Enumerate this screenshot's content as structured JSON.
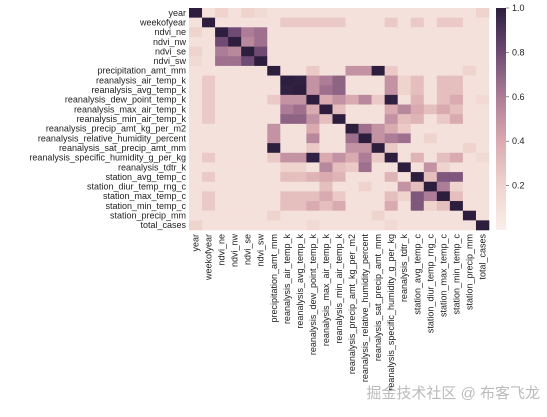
{
  "chart_data": {
    "type": "heatmap",
    "categories": [
      "year",
      "weekofyear",
      "ndvi_ne",
      "ndvi_nw",
      "ndvi_se",
      "ndvi_sw",
      "precipitation_amt_mm",
      "reanalysis_air_temp_k",
      "reanalysis_avg_temp_k",
      "reanalysis_dew_point_temp_k",
      "reanalysis_max_air_temp_k",
      "reanalysis_min_air_temp_k",
      "reanalysis_precip_amt_kg_per_m2",
      "reanalysis_relative_humidity_percent",
      "reanalysis_sat_precip_amt_mm",
      "reanalysis_specific_humidity_g_per_kg",
      "reanalysis_tdtr_k",
      "station_avg_temp_c",
      "station_diur_temp_rng_c",
      "station_max_temp_c",
      "station_min_temp_c",
      "station_precip_mm",
      "total_cases"
    ],
    "values": [
      [
        1,
        0.1,
        0.2,
        0.1,
        0.2,
        0.15,
        0.1,
        0.1,
        0.1,
        0.1,
        0.1,
        0.1,
        0.1,
        0.1,
        0.1,
        0.1,
        0.1,
        0.1,
        0.1,
        0.1,
        0.1,
        0.1,
        0.2
      ],
      [
        0.1,
        1,
        0.1,
        0.1,
        0.1,
        0.1,
        0.1,
        0.25,
        0.25,
        0.25,
        0.25,
        0.25,
        0.1,
        0.1,
        0.1,
        0.25,
        0.1,
        0.25,
        0.1,
        0.25,
        0.25,
        0.1,
        0.1
      ],
      [
        0.2,
        0.1,
        1,
        0.8,
        0.6,
        0.65,
        0.1,
        0.1,
        0.1,
        0.1,
        0.1,
        0.1,
        0.1,
        0.1,
        0.1,
        0.1,
        0.1,
        0.1,
        0.1,
        0.1,
        0.1,
        0.1,
        0.1
      ],
      [
        0.1,
        0.1,
        0.8,
        1,
        0.55,
        0.65,
        0.1,
        0.1,
        0.1,
        0.1,
        0.1,
        0.1,
        0.1,
        0.1,
        0.1,
        0.1,
        0.1,
        0.1,
        0.1,
        0.1,
        0.1,
        0.1,
        0.1
      ],
      [
        0.2,
        0.1,
        0.6,
        0.55,
        1,
        0.8,
        0.1,
        0.1,
        0.1,
        0.1,
        0.1,
        0.1,
        0.1,
        0.1,
        0.1,
        0.1,
        0.1,
        0.1,
        0.1,
        0.1,
        0.1,
        0.1,
        0.1
      ],
      [
        0.15,
        0.1,
        0.65,
        0.65,
        0.8,
        1,
        0.1,
        0.1,
        0.1,
        0.1,
        0.1,
        0.1,
        0.1,
        0.1,
        0.1,
        0.1,
        0.1,
        0.1,
        0.1,
        0.1,
        0.1,
        0.1,
        0.1
      ],
      [
        0.1,
        0.1,
        0.1,
        0.1,
        0.1,
        0.1,
        1,
        0.1,
        0.1,
        0.25,
        0.1,
        0.1,
        0.5,
        0.5,
        1,
        0.25,
        0.1,
        0.1,
        0.1,
        0.1,
        0.1,
        0.2,
        0.1
      ],
      [
        0.1,
        0.25,
        0.1,
        0.1,
        0.1,
        0.1,
        0.1,
        1,
        0.99,
        0.5,
        0.6,
        0.7,
        0.1,
        0.1,
        0.1,
        0.5,
        0.2,
        0.3,
        0.1,
        0.3,
        0.3,
        0.1,
        0.1
      ],
      [
        0.1,
        0.25,
        0.1,
        0.1,
        0.1,
        0.1,
        0.1,
        0.99,
        1,
        0.5,
        0.65,
        0.7,
        0.1,
        0.1,
        0.1,
        0.5,
        0.2,
        0.3,
        0.1,
        0.3,
        0.3,
        0.1,
        0.1
      ],
      [
        0.1,
        0.25,
        0.1,
        0.1,
        0.1,
        0.1,
        0.25,
        0.5,
        0.5,
        1,
        0.4,
        0.5,
        0.4,
        0.55,
        0.25,
        0.99,
        0.1,
        0.35,
        0.1,
        0.3,
        0.4,
        0.1,
        0.15
      ],
      [
        0.1,
        0.25,
        0.1,
        0.1,
        0.1,
        0.1,
        0.1,
        0.6,
        0.65,
        0.4,
        1,
        0.3,
        0.1,
        0.1,
        0.1,
        0.4,
        0.55,
        0.4,
        0.3,
        0.4,
        0.3,
        0.1,
        0.1
      ],
      [
        0.1,
        0.25,
        0.1,
        0.1,
        0.1,
        0.1,
        0.1,
        0.7,
        0.7,
        0.5,
        0.3,
        1,
        0.1,
        0.1,
        0.1,
        0.5,
        0.3,
        0.35,
        0.1,
        0.25,
        0.4,
        0.1,
        0.1
      ],
      [
        0.1,
        0.1,
        0.1,
        0.1,
        0.1,
        0.1,
        0.5,
        0.1,
        0.1,
        0.4,
        0.1,
        0.1,
        1,
        0.65,
        0.5,
        0.4,
        0.25,
        0.1,
        0.1,
        0.1,
        0.1,
        0.1,
        0.1
      ],
      [
        0.1,
        0.1,
        0.1,
        0.1,
        0.1,
        0.1,
        0.5,
        0.1,
        0.1,
        0.55,
        0.1,
        0.1,
        0.65,
        1,
        0.5,
        0.6,
        0.65,
        0.1,
        0.2,
        0.1,
        0.1,
        0.1,
        0.1
      ],
      [
        0.1,
        0.1,
        0.1,
        0.1,
        0.1,
        0.1,
        1,
        0.1,
        0.1,
        0.25,
        0.1,
        0.1,
        0.5,
        0.5,
        1,
        0.25,
        0.1,
        0.1,
        0.1,
        0.1,
        0.1,
        0.2,
        0.1
      ],
      [
        0.1,
        0.25,
        0.1,
        0.1,
        0.1,
        0.1,
        0.25,
        0.5,
        0.5,
        0.99,
        0.4,
        0.5,
        0.4,
        0.6,
        0.25,
        1,
        0.1,
        0.35,
        0.1,
        0.3,
        0.4,
        0.1,
        0.15
      ],
      [
        0.1,
        0.1,
        0.1,
        0.1,
        0.1,
        0.1,
        0.1,
        0.2,
        0.2,
        0.1,
        0.55,
        0.3,
        0.25,
        0.65,
        0.1,
        0.1,
        1,
        0.1,
        0.5,
        0.2,
        0.1,
        0.1,
        0.1
      ],
      [
        0.1,
        0.25,
        0.1,
        0.1,
        0.1,
        0.1,
        0.1,
        0.3,
        0.3,
        0.35,
        0.4,
        0.35,
        0.1,
        0.1,
        0.1,
        0.35,
        0.1,
        1,
        0.3,
        0.75,
        0.75,
        0.1,
        0.1
      ],
      [
        0.1,
        0.1,
        0.1,
        0.1,
        0.1,
        0.1,
        0.1,
        0.1,
        0.1,
        0.1,
        0.3,
        0.1,
        0.1,
        0.2,
        0.1,
        0.1,
        0.5,
        0.3,
        1,
        0.6,
        0.2,
        0.1,
        0.1
      ],
      [
        0.1,
        0.25,
        0.1,
        0.1,
        0.1,
        0.1,
        0.1,
        0.3,
        0.3,
        0.3,
        0.4,
        0.25,
        0.1,
        0.1,
        0.1,
        0.3,
        0.2,
        0.75,
        0.6,
        1,
        0.3,
        0.1,
        0.1
      ],
      [
        0.1,
        0.25,
        0.1,
        0.1,
        0.1,
        0.1,
        0.1,
        0.3,
        0.3,
        0.4,
        0.3,
        0.4,
        0.1,
        0.1,
        0.1,
        0.4,
        0.1,
        0.75,
        0.2,
        0.3,
        1,
        0.1,
        0.1
      ],
      [
        0.1,
        0.1,
        0.1,
        0.1,
        0.1,
        0.1,
        0.2,
        0.1,
        0.1,
        0.1,
        0.1,
        0.1,
        0.1,
        0.1,
        0.2,
        0.1,
        0.1,
        0.1,
        0.1,
        0.1,
        0.1,
        1,
        0.1
      ],
      [
        0.2,
        0.1,
        0.1,
        0.1,
        0.1,
        0.1,
        0.1,
        0.1,
        0.1,
        0.15,
        0.1,
        0.1,
        0.1,
        0.1,
        0.1,
        0.15,
        0.1,
        0.1,
        0.1,
        0.1,
        0.1,
        0.1,
        1
      ]
    ],
    "zlim": [
      0,
      1
    ],
    "zticks": [
      0.2,
      0.4,
      0.6,
      0.8,
      {
        "value": 1.0,
        "label": "1.0"
      }
    ],
    "colors": [
      "#fbeeea",
      "#efd3cd",
      "#d9aaaf",
      "#ad7c96",
      "#6f4b74",
      "#2d1e3e"
    ]
  },
  "watermark": "掘金技术社区 @ 布客飞龙"
}
